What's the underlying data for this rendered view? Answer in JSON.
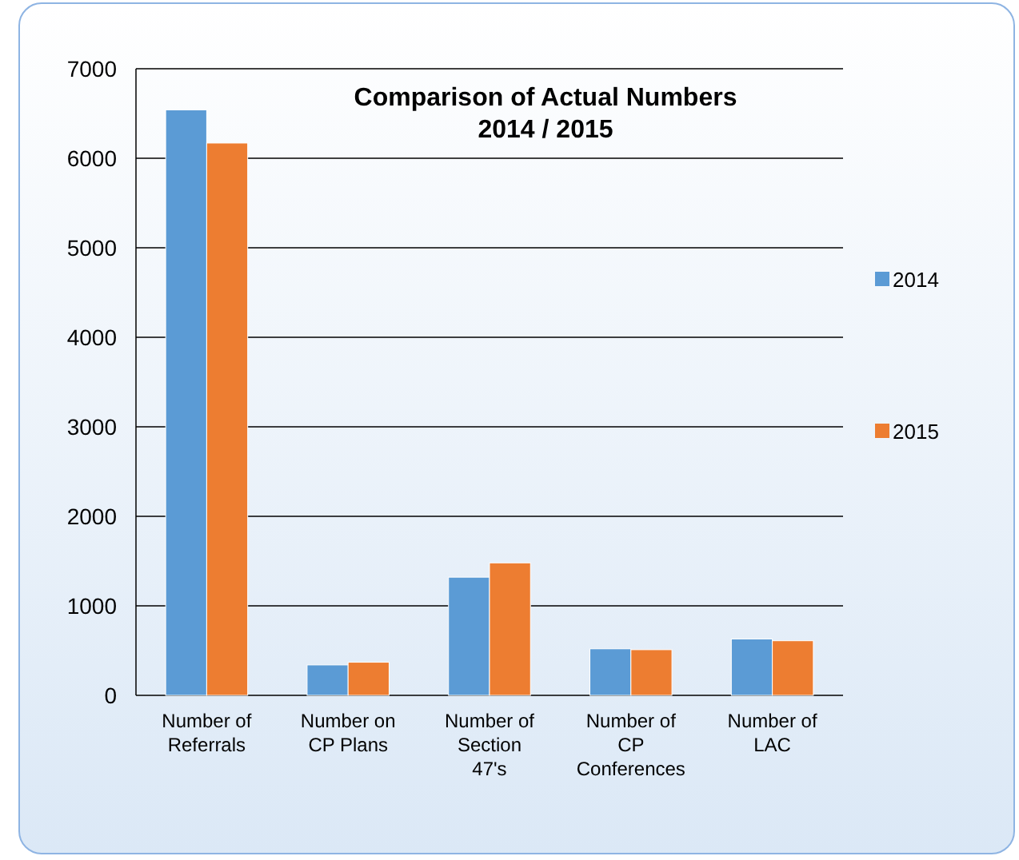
{
  "chart_data": {
    "type": "bar",
    "title": "Comparison of Actual Numbers 2014 / 2015",
    "categories": [
      "Number of Referrals",
      "Number on CP Plans",
      "Number of Section 47's",
      "Number of CP Conferences",
      "Number of LAC"
    ],
    "series": [
      {
        "name": "2014",
        "color": "#5b9bd5",
        "values": [
          6540,
          340,
          1320,
          520,
          630
        ]
      },
      {
        "name": "2015",
        "color": "#ed7d31",
        "values": [
          6170,
          370,
          1480,
          510,
          610
        ]
      }
    ],
    "ylim": [
      0,
      7000
    ],
    "yticks": [
      0,
      1000,
      2000,
      3000,
      4000,
      5000,
      6000,
      7000
    ],
    "grid": "y",
    "legend": "right"
  }
}
